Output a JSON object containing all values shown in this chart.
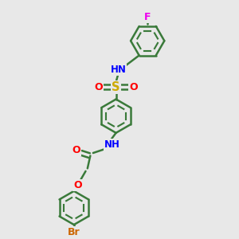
{
  "bg_color": "#e8e8e8",
  "bond_color": "#3a7a3a",
  "bond_width": 1.8,
  "atom_colors": {
    "N": "#0000ff",
    "O": "#ff0000",
    "S": "#ccaa00",
    "F": "#ee00ee",
    "Br": "#cc6600",
    "C": "#3a7a3a",
    "H": "#3a7a3a"
  },
  "font_size": 8.5,
  "fig_width": 3.0,
  "fig_height": 3.0,
  "dpi": 100,
  "xlim": [
    0,
    10
  ],
  "ylim": [
    0,
    10
  ]
}
